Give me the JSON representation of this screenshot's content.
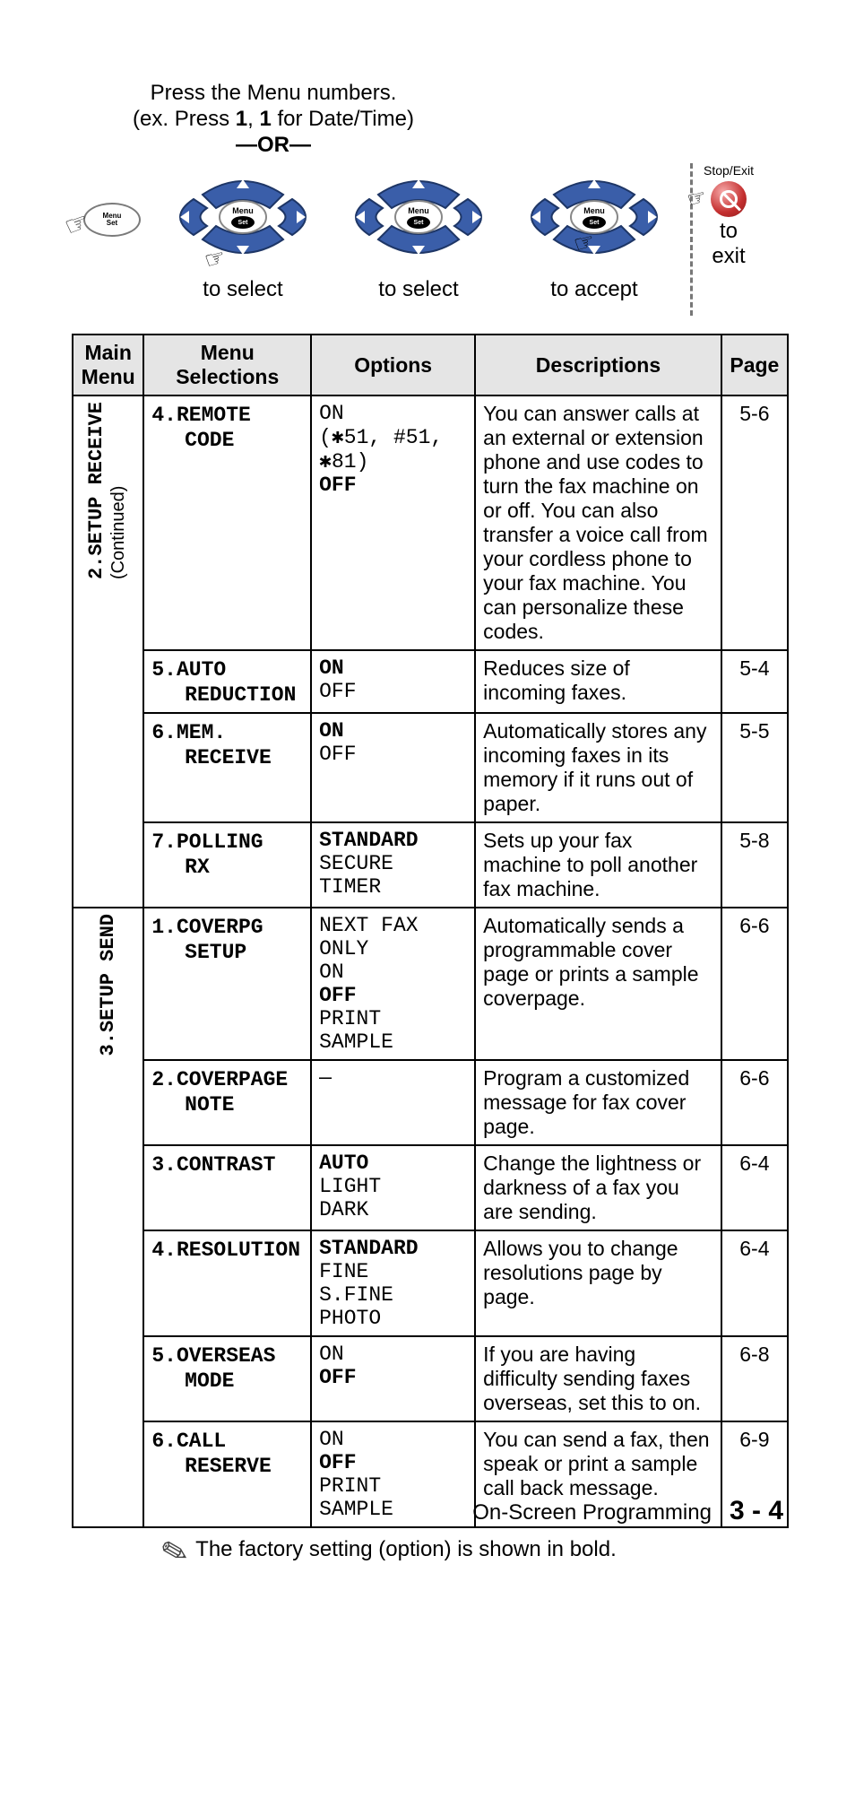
{
  "colors": {
    "nav_fill": "#3a5ea9",
    "nav_stroke": "#1e3666",
    "nav_arrow": "#ffffff",
    "menu_button_fill": "#ffffff",
    "menu_button_stroke": "#666666",
    "stop_button": "#c42f2f",
    "table_header_bg": "#e5e5e5",
    "table_border": "#000000",
    "text": "#000000",
    "background": "#ffffff"
  },
  "typography": {
    "body_font": "Arial",
    "mono_font": "Courier New",
    "body_size_pt": 18,
    "header_weight": "bold"
  },
  "instructions": {
    "line1": "Press the Menu numbers.",
    "line2_prefix": "(ex. Press ",
    "line2_b1": "1",
    "line2_mid": ", ",
    "line2_b2": "1",
    "line2_suffix": " for Date/Time)",
    "or": "—OR—"
  },
  "nav": {
    "menu_label": "Menu",
    "set_label": "Set",
    "select": "to select",
    "accept": "to accept",
    "stop_label": "Stop/Exit",
    "exit1": "to",
    "exit2": "exit"
  },
  "table": {
    "headers": {
      "main": "Main Menu",
      "selections": "Menu Selections",
      "options": "Options",
      "descriptions": "Descriptions",
      "page": "Page"
    },
    "group1": {
      "main": "2.SETUP RECEIVE",
      "sub": "(Continued)",
      "rows": [
        {
          "sel_num": "4.",
          "sel_a": "REMOTE",
          "sel_b": "CODE",
          "opts": [
            {
              "t": "ON",
              "b": false
            },
            {
              "t": "(✱51, #51,",
              "b": false
            },
            {
              "t": "✱81)",
              "b": false
            },
            {
              "t": "OFF",
              "b": true
            }
          ],
          "desc": "You can answer calls at an external or extension phone and use codes to turn the fax machine on or off. You can also transfer a voice call from your cordless phone to your fax machine. You can personalize these codes.",
          "page": "5-6"
        },
        {
          "sel_num": "5.",
          "sel_a": "AUTO",
          "sel_b": "REDUCTION",
          "opts": [
            {
              "t": "ON",
              "b": true
            },
            {
              "t": "OFF",
              "b": false
            }
          ],
          "desc": "Reduces size of incoming faxes.",
          "page": "5-4"
        },
        {
          "sel_num": "6.",
          "sel_a": "MEM.",
          "sel_b": "RECEIVE",
          "opts": [
            {
              "t": "ON",
              "b": true
            },
            {
              "t": "OFF",
              "b": false
            }
          ],
          "desc": "Automatically stores any incoming faxes in its memory if it runs out of paper.",
          "page": "5-5"
        },
        {
          "sel_num": "7.",
          "sel_a": "POLLING",
          "sel_b": "RX",
          "opts": [
            {
              "t": "STANDARD",
              "b": true
            },
            {
              "t": "SECURE",
              "b": false
            },
            {
              "t": "TIMER",
              "b": false
            }
          ],
          "desc": "Sets up your fax machine to poll another fax machine.",
          "page": "5-8"
        }
      ]
    },
    "group2": {
      "main": "3.SETUP SEND",
      "rows": [
        {
          "sel_num": "1.",
          "sel_a": "COVERPG",
          "sel_b": "SETUP",
          "opts": [
            {
              "t": "NEXT FAX ONLY",
              "b": false
            },
            {
              "t": "ON",
              "b": false
            },
            {
              "t": "OFF",
              "b": true
            },
            {
              "t": "PRINT SAMPLE",
              "b": false
            }
          ],
          "desc": "Automatically sends a programmable cover page or prints a sample coverpage.",
          "page": "6-6"
        },
        {
          "sel_num": "2.",
          "sel_a": "COVERPAGE",
          "sel_b": "NOTE",
          "opts": [
            {
              "t": "—",
              "b": false
            }
          ],
          "desc": "Program a customized message for fax cover page.",
          "page": "6-6"
        },
        {
          "sel_num": "3.",
          "sel_a": "CONTRAST",
          "sel_b": "",
          "opts": [
            {
              "t": "AUTO",
              "b": true
            },
            {
              "t": "LIGHT",
              "b": false
            },
            {
              "t": "DARK",
              "b": false
            }
          ],
          "desc": "Change the lightness or darkness of a fax you are sending.",
          "page": "6-4"
        },
        {
          "sel_num": "4.",
          "sel_a": "RESOLUTION",
          "sel_b": "",
          "opts": [
            {
              "t": "STANDARD",
              "b": true
            },
            {
              "t": "FINE",
              "b": false
            },
            {
              "t": "S.FINE",
              "b": false
            },
            {
              "t": "PHOTO",
              "b": false
            }
          ],
          "desc": "Allows you to change resolutions page by page.",
          "page": "6-4"
        },
        {
          "sel_num": "5.",
          "sel_a": "OVERSEAS",
          "sel_b": "MODE",
          "opts": [
            {
              "t": "ON",
              "b": false
            },
            {
              "t": "OFF",
              "b": true
            }
          ],
          "desc": "If you are having difficulty sending faxes overseas, set this to on.",
          "page": "6-8"
        },
        {
          "sel_num": "6.",
          "sel_a": "CALL",
          "sel_b": "RESERVE",
          "opts": [
            {
              "t": "ON",
              "b": false
            },
            {
              "t": "OFF",
              "b": true
            },
            {
              "t": "PRINT SAMPLE",
              "b": false
            }
          ],
          "desc": "You can send a fax, then speak or print a sample call back message.",
          "page": "6-9"
        }
      ]
    }
  },
  "note": "The factory setting (option) is shown in bold.",
  "footer": {
    "title": "On-Screen Programming",
    "page": "3 - 4"
  }
}
